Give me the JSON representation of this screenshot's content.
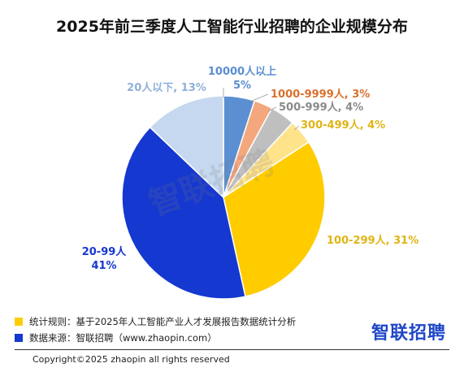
{
  "title": "2025年前三季度人工智能行业招聘的企业规模分布",
  "watermark": "智联招聘",
  "chart_data": {
    "type": "pie",
    "title": "2025年前三季度人工智能行业招聘的企业规模分布",
    "slices": [
      {
        "label": "10000人以上",
        "value": 5,
        "value_text": "5%",
        "color": "#5b8fd1",
        "label_color": "#5b8fd1"
      },
      {
        "label": "1000-9999人",
        "value": 3,
        "value_text": "3%",
        "color": "#f4a77d",
        "label_color": "#d9702e"
      },
      {
        "label": "500-999人",
        "value": 4,
        "value_text": "4%",
        "color": "#bfbfbf",
        "label_color": "#8a8a8a"
      },
      {
        "label": "300-499人",
        "value": 4,
        "value_text": "4%",
        "color": "#ffe38a",
        "label_color": "#e0b416"
      },
      {
        "label": "100-299人",
        "value": 31,
        "value_text": "31%",
        "color": "#ffcc00",
        "label_color": "#e0b416"
      },
      {
        "label": "20-99人",
        "value": 41,
        "value_text": "41%",
        "color": "#1538d0",
        "label_color": "#1538d0"
      },
      {
        "label": "20人以下",
        "value": 13,
        "value_text": "13%",
        "color": "#c5d8ef",
        "label_color": "#8fb0d9"
      }
    ]
  },
  "footer": {
    "rule_label": "统计规则：基于2025年人工智能产业人才发展报告数据统计分析",
    "source_label": "数据来源：智联招聘（www.zhaopin.com）",
    "rule_color": "#ffcc00",
    "source_color": "#1538d0",
    "brand": "智联招聘",
    "copyright": "Copyright©2025 zhaopin all rights reserved"
  }
}
